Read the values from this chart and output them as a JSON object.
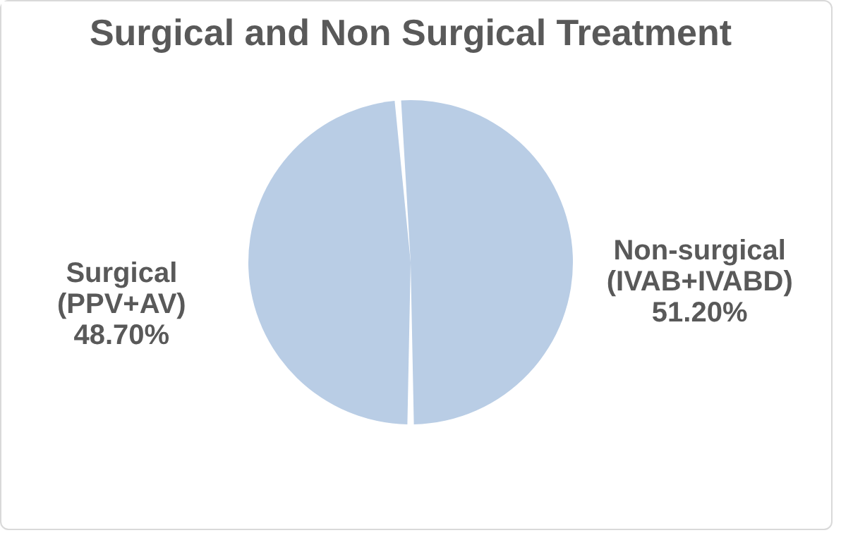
{
  "chart_data": {
    "type": "pie",
    "title": "Surgical and Non Surgical Treatment",
    "categories": [
      "Surgical (PPV+AV)",
      "Non-surgical (IVAB+IVABD)"
    ],
    "values": [
      48.7,
      51.2
    ],
    "value_labels": [
      "48.70%",
      "51.20%"
    ],
    "colors": [
      "#b9cde5",
      "#b9cde5"
    ]
  }
}
